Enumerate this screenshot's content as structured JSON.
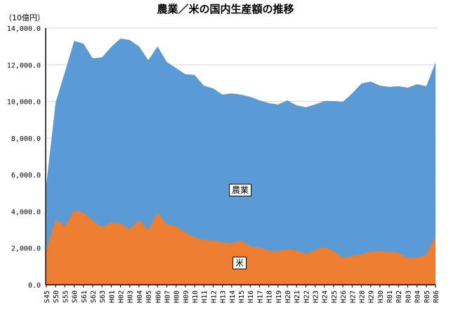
{
  "chart_data": {
    "type": "area",
    "title": "農業／米の国内生産額の推移",
    "ylabel": "（10億円）",
    "xlabel": "",
    "ylim": [
      0,
      14000
    ],
    "yticks": [
      0,
      2000,
      4000,
      6000,
      8000,
      10000,
      12000,
      14000
    ],
    "ytick_labels": [
      "0.0",
      "2,000.0",
      "4,000.0",
      "6,000.0",
      "8,000.0",
      "10,000.0",
      "12,000.0",
      "14,000.0"
    ],
    "grid": true,
    "stacked": false,
    "categories": [
      "S45",
      "S50",
      "S55",
      "S60",
      "S61",
      "S62",
      "S63",
      "H01",
      "H02",
      "H03",
      "H04",
      "H05",
      "H06",
      "H07",
      "H08",
      "H09",
      "H10",
      "H11",
      "H12",
      "H13",
      "H14",
      "H15",
      "H16",
      "H17",
      "H18",
      "H19",
      "H20",
      "H21",
      "H22",
      "H23",
      "H24",
      "H25",
      "H26",
      "H27",
      "H28",
      "H29",
      "H30",
      "R01",
      "R02",
      "R03",
      "R04",
      "R05",
      "R06"
    ],
    "series": [
      {
        "name": "農業",
        "color": "#5b9bd5",
        "values": [
          5500,
          9950,
          11600,
          13300,
          13150,
          12350,
          12400,
          12970,
          13430,
          13350,
          13000,
          12250,
          13000,
          12150,
          11820,
          11480,
          11440,
          10860,
          10710,
          10370,
          10440,
          10370,
          10250,
          10060,
          9910,
          9830,
          10060,
          9790,
          9680,
          9830,
          10020,
          10020,
          9980,
          10440,
          10980,
          11090,
          10860,
          10790,
          10830,
          10750,
          10940,
          10830,
          12130
        ]
      },
      {
        "name": "米",
        "color": "#ed7d31",
        "values": [
          1900,
          3560,
          3200,
          4050,
          3950,
          3500,
          3150,
          3400,
          3350,
          3050,
          3550,
          2980,
          3950,
          3300,
          3200,
          2850,
          2600,
          2450,
          2420,
          2330,
          2260,
          2420,
          2100,
          2030,
          1870,
          1870,
          1950,
          1870,
          1680,
          1910,
          2070,
          1840,
          1490,
          1570,
          1680,
          1800,
          1840,
          1800,
          1760,
          1450,
          1490,
          1640,
          2680
        ]
      }
    ],
    "annotations": [
      "農業",
      "米"
    ]
  }
}
